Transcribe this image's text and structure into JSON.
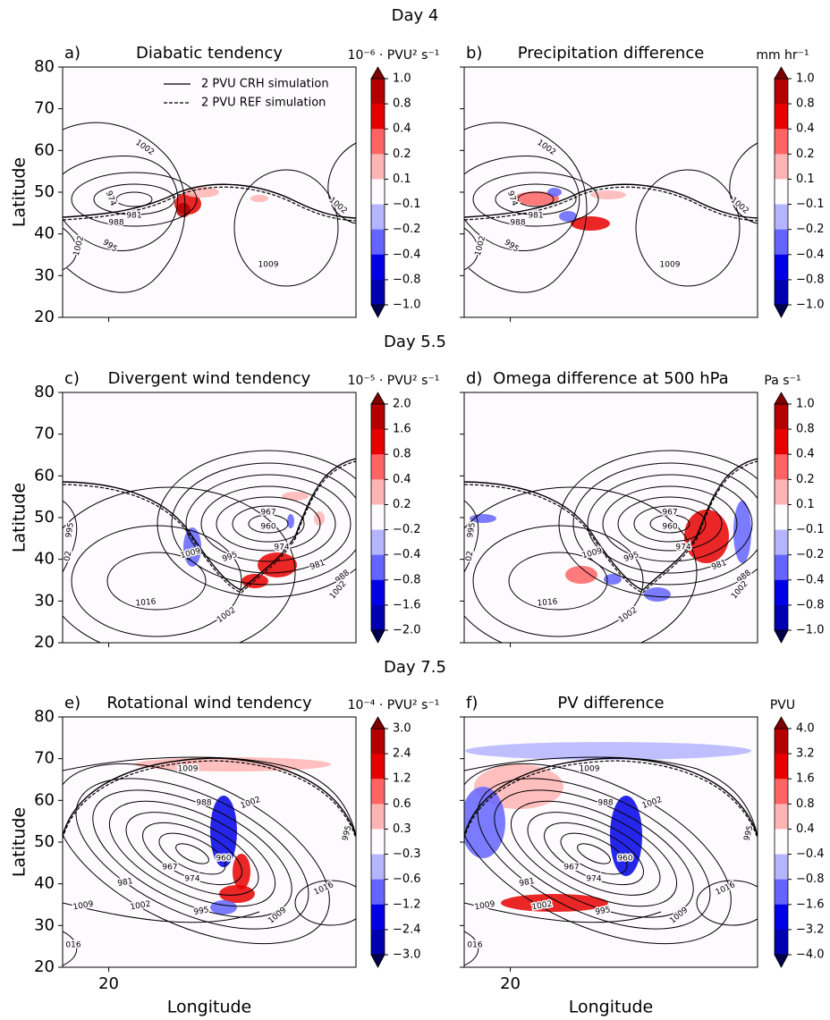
{
  "figure_titles": [
    "Day 4",
    "Day 5.5",
    "Day 7.5"
  ],
  "colormap": {
    "colors": [
      "#b40000",
      "#e60000",
      "#ff6464",
      "#ffb4b4",
      "#fdfbfd",
      "#b4b4ff",
      "#6464ff",
      "#0000e6",
      "#0000b0"
    ],
    "extend_colors": [
      "#7f0000",
      "#00004c"
    ]
  },
  "chart_data": [
    {
      "type": "contour",
      "panel_label": "a)",
      "title": "Diabatic tendency",
      "ylabel": "Latitude",
      "legend": [
        "2 PVU CRH simulation",
        "2 PVU REF simulation"
      ],
      "xlim": [
        9,
        79
      ],
      "ylim": [
        20,
        80
      ],
      "xticks": [
        {
          "value": 20,
          "label": null
        }
      ],
      "yticks": [
        20,
        30,
        40,
        50,
        60,
        70,
        80
      ],
      "colorbar": {
        "label": "10⁻⁶ · PVU² s⁻¹",
        "ticks": [
          {
            "value": 1,
            "label": "1.0"
          },
          0.8,
          0.4,
          0.2,
          0.1,
          {
            "value": -0.1,
            "label": "−0.1"
          },
          {
            "value": -0.2,
            "label": "−0.2"
          },
          {
            "value": -0.4,
            "label": "−0.4"
          },
          {
            "value": -0.8,
            "label": "−0.8"
          },
          {
            "value": -1,
            "label": "−1.0"
          }
        ]
      },
      "contour_labels": [
        "1002",
        "974",
        "981",
        "988",
        "995",
        "1002",
        "1009",
        "1002"
      ]
    },
    {
      "type": "contour",
      "panel_label": "b)",
      "title": "Precipitation difference",
      "xlim": [
        9,
        79
      ],
      "ylim": [
        20,
        80
      ],
      "xticks": [
        {
          "value": 20,
          "label": null
        }
      ],
      "yticks": [
        {
          "value": 20,
          "label": null
        },
        {
          "value": 30,
          "label": null
        },
        {
          "value": 40,
          "label": null
        },
        {
          "value": 50,
          "label": null
        },
        {
          "value": 60,
          "label": null
        },
        {
          "value": 70,
          "label": null
        },
        {
          "value": 80,
          "label": null
        }
      ],
      "colorbar": {
        "label": "mm hr⁻¹",
        "ticks": [
          {
            "value": 1,
            "label": "1.0"
          },
          0.8,
          0.4,
          0.2,
          0.1,
          {
            "value": -0.1,
            "label": "−0.1"
          },
          {
            "value": -0.2,
            "label": "−0.2"
          },
          {
            "value": -0.4,
            "label": "−0.4"
          },
          {
            "value": -0.8,
            "label": "−0.8"
          },
          {
            "value": -1,
            "label": "−1.0"
          }
        ]
      },
      "contour_labels": [
        "1002",
        "974",
        "981",
        "988",
        "995",
        "1002",
        "1009",
        "1002"
      ]
    },
    {
      "type": "contour",
      "panel_label": "c)",
      "title": "Divergent wind tendency",
      "ylabel": "Latitude",
      "xlim": [
        9,
        79
      ],
      "ylim": [
        20,
        80
      ],
      "xticks": [
        {
          "value": 20,
          "label": null
        }
      ],
      "yticks": [
        20,
        30,
        40,
        50,
        60,
        70,
        80
      ],
      "colorbar": {
        "label": "10⁻⁵ · PVU² s⁻¹",
        "ticks": [
          {
            "value": 2,
            "label": "2.0"
          },
          1.6,
          0.8,
          0.4,
          0.2,
          {
            "value": -0.2,
            "label": "−0.2"
          },
          {
            "value": -0.4,
            "label": "−0.4"
          },
          {
            "value": -0.8,
            "label": "−0.8"
          },
          {
            "value": -1.6,
            "label": "−1.6"
          },
          {
            "value": -2,
            "label": "−2.0"
          }
        ]
      },
      "contour_labels": [
        "967",
        "960",
        "974",
        "981",
        "988",
        "995",
        "1009",
        "1002",
        "1016",
        "1002",
        "995",
        "02"
      ]
    },
    {
      "type": "contour",
      "panel_label": "d)",
      "title": "Omega difference at 500 hPa",
      "xlim": [
        9,
        79
      ],
      "ylim": [
        20,
        80
      ],
      "xticks": [
        {
          "value": 20,
          "label": null
        }
      ],
      "yticks": [
        {
          "value": 20,
          "label": null
        },
        {
          "value": 30,
          "label": null
        },
        {
          "value": 40,
          "label": null
        },
        {
          "value": 50,
          "label": null
        },
        {
          "value": 60,
          "label": null
        },
        {
          "value": 70,
          "label": null
        },
        {
          "value": 80,
          "label": null
        }
      ],
      "colorbar": {
        "label": "Pa s⁻¹",
        "ticks": [
          {
            "value": 1,
            "label": "1.0"
          },
          0.8,
          0.4,
          0.2,
          0.1,
          {
            "value": -0.1,
            "label": "−0.1"
          },
          {
            "value": -0.2,
            "label": "−0.2"
          },
          {
            "value": -0.4,
            "label": "−0.4"
          },
          {
            "value": -0.8,
            "label": "−0.8"
          },
          {
            "value": -1,
            "label": "−1.0"
          }
        ]
      },
      "contour_labels": [
        "967",
        "960",
        "974",
        "981",
        "988",
        "995",
        "1009",
        "1002",
        "1016",
        "1002",
        "995",
        "02"
      ]
    },
    {
      "type": "contour",
      "panel_label": "e)",
      "title": "Rotational wind tendency",
      "ylabel": "Latitude",
      "xlabel": "Longitude",
      "xlim": [
        9,
        79
      ],
      "ylim": [
        20,
        80
      ],
      "xticks": [
        20
      ],
      "yticks": [
        20,
        30,
        40,
        50,
        60,
        70,
        80
      ],
      "colorbar": {
        "label": "10⁻⁴ · PVU² s⁻¹",
        "ticks": [
          {
            "value": 3,
            "label": "3.0"
          },
          2.4,
          1.2,
          0.6,
          0.3,
          {
            "value": -0.3,
            "label": "−0.3"
          },
          {
            "value": -0.6,
            "label": "−0.6"
          },
          {
            "value": -1.2,
            "label": "−1.2"
          },
          {
            "value": -2.4,
            "label": "−2.4"
          },
          {
            "value": -3,
            "label": "−3.0"
          }
        ]
      },
      "contour_labels": [
        "1009",
        "1002",
        "988",
        "995",
        "960",
        "967",
        "974",
        "981",
        "1002",
        "1009",
        "995",
        "1009",
        "1016",
        "016"
      ]
    },
    {
      "type": "contour",
      "panel_label": "f)",
      "title": "PV difference",
      "xlabel": "Longitude",
      "xlim": [
        9,
        79
      ],
      "ylim": [
        20,
        80
      ],
      "xticks": [
        20
      ],
      "yticks": [
        {
          "value": 20,
          "label": null
        },
        {
          "value": 30,
          "label": null
        },
        {
          "value": 40,
          "label": null
        },
        {
          "value": 50,
          "label": null
        },
        {
          "value": 60,
          "label": null
        },
        {
          "value": 70,
          "label": null
        },
        {
          "value": 80,
          "label": null
        }
      ],
      "colorbar": {
        "label": "PVU",
        "ticks": [
          {
            "value": 4,
            "label": "4.0"
          },
          3.2,
          1.6,
          0.8,
          0.4,
          {
            "value": -0.4,
            "label": "−0.4"
          },
          {
            "value": -0.8,
            "label": "−0.8"
          },
          {
            "value": -1.6,
            "label": "−1.6"
          },
          {
            "value": -3.2,
            "label": "−3.2"
          },
          {
            "value": -4,
            "label": "−4.0"
          }
        ]
      },
      "contour_labels": [
        "1009",
        "1002",
        "988",
        "995",
        "960",
        "967",
        "974",
        "981",
        "1002",
        "1009",
        "995",
        "1009",
        "1016",
        "016"
      ]
    }
  ]
}
